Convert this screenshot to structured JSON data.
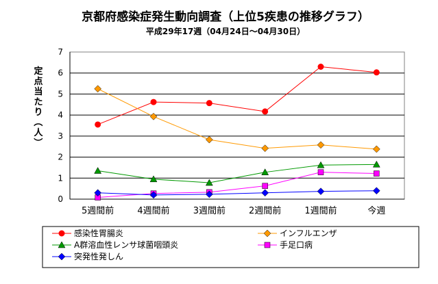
{
  "chart_data": {
    "type": "line",
    "title": "京都府感染症発生動向調査（上位5疾患の推移グラフ）",
    "subtitle": "平成29年17週（04月24日〜04月30日）",
    "xlabel": "",
    "ylabel": "定点当たり（人）",
    "ylim": [
      0,
      7
    ],
    "yticks": [
      "0",
      "1",
      "2",
      "3",
      "4",
      "5",
      "6",
      "7"
    ],
    "categories": [
      "5週間前",
      "4週間前",
      "3週間前",
      "2週間前",
      "1週間前",
      "今週"
    ],
    "grid": true,
    "legend_position": "bottom",
    "series": [
      {
        "name": "感染性胃腸炎",
        "color": "#ff0000",
        "marker": "circle",
        "values": [
          3.55,
          4.62,
          4.57,
          4.17,
          6.3,
          6.03
        ]
      },
      {
        "name": "インフルエンザ",
        "color": "#ff9900",
        "marker": "diamond",
        "values": [
          5.25,
          3.93,
          2.83,
          2.42,
          2.58,
          2.38
        ]
      },
      {
        "name": "A群溶血性レンサ球菌咽頭炎",
        "color": "#009900",
        "marker": "triangle",
        "values": [
          1.35,
          0.95,
          0.78,
          1.28,
          1.62,
          1.65
        ]
      },
      {
        "name": "手足口病",
        "color": "#ff00ff",
        "marker": "square",
        "values": [
          0.08,
          0.27,
          0.33,
          0.63,
          1.28,
          1.22
        ]
      },
      {
        "name": "突発性発しん",
        "color": "#0000ff",
        "marker": "diamond",
        "values": [
          0.3,
          0.2,
          0.23,
          0.3,
          0.37,
          0.4
        ]
      }
    ]
  }
}
